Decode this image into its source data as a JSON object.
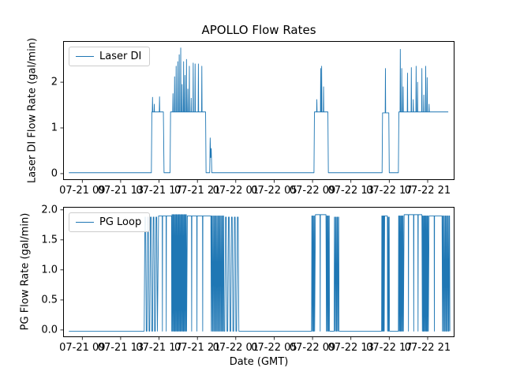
{
  "figure": {
    "title": "APOLLO Flow Rates",
    "xlabel": "Date (GMT)"
  },
  "chart_data": [
    {
      "type": "line",
      "title": "APOLLO Flow Rates",
      "xlabel": "",
      "ylabel": "Laser DI Flow Rate (gal/min)",
      "legend_label": "Laser DI",
      "legend_position": "upper left",
      "line_color": "#1f77b4",
      "grid": false,
      "xlim": [
        0,
        40.8
      ],
      "ylim": [
        -0.14,
        2.9
      ],
      "x_unit": "hours since 07-21 07:00 GMT",
      "xtick_values": [
        2,
        6,
        10,
        14,
        18,
        22,
        26,
        30,
        34,
        38
      ],
      "xtick_labels": [
        "07-21 09",
        "07-21 13",
        "07-21 17",
        "07-21 21",
        "07-22 01",
        "07-22 05",
        "07-22 09",
        "07-22 13",
        "07-22 17",
        "07-22 21"
      ],
      "ytick_values": [
        0,
        1,
        2
      ],
      "ytick_labels": [
        "0",
        "1",
        "2"
      ],
      "series": [
        {
          "name": "Laser DI",
          "segments": [
            {
              "kind": "flat",
              "t": [
                0.6,
                9.2
              ],
              "y": 0.02
            },
            {
              "kind": "plateau_spikes",
              "t": [
                9.25,
                10.45
              ],
              "y": 1.35,
              "spikes": [
                [
                  9.32,
                  1.67
                ],
                [
                  9.5,
                  1.52
                ],
                [
                  10.05,
                  1.68
                ]
              ]
            },
            {
              "kind": "flat",
              "t": [
                10.52,
                11.15
              ],
              "y": 0.02
            },
            {
              "kind": "plateau_spikes",
              "t": [
                11.2,
                14.85
              ],
              "y": 1.35,
              "spikes": [
                [
                  11.45,
                  1.75
                ],
                [
                  11.62,
                  2.12
                ],
                [
                  11.78,
                  2.35
                ],
                [
                  11.95,
                  2.45
                ],
                [
                  12.1,
                  2.6
                ],
                [
                  12.26,
                  2.75
                ],
                [
                  12.4,
                  1.95
                ],
                [
                  12.56,
                  2.45
                ],
                [
                  12.7,
                  2.15
                ],
                [
                  12.86,
                  2.5
                ],
                [
                  13.0,
                  1.85
                ],
                [
                  13.16,
                  2.35
                ],
                [
                  13.35,
                  1.65
                ],
                [
                  13.56,
                  2.42
                ],
                [
                  13.76,
                  2.4
                ],
                [
                  14.1,
                  2.4
                ],
                [
                  14.46,
                  2.35
                ]
              ]
            },
            {
              "kind": "points",
              "pts": [
                [
                  14.9,
                  0.02
                ],
                [
                  15.28,
                  0.02
                ],
                [
                  15.33,
                  0.78
                ],
                [
                  15.38,
                  0.35
                ],
                [
                  15.44,
                  0.55
                ],
                [
                  15.5,
                  0.02
                ]
              ]
            },
            {
              "kind": "flat",
              "t": [
                15.55,
                26.15
              ],
              "y": 0.02
            },
            {
              "kind": "plateau_spikes",
              "t": [
                26.2,
                27.6
              ],
              "y": 1.35,
              "spikes": [
                [
                  26.45,
                  1.62
                ],
                [
                  26.85,
                  2.3
                ],
                [
                  26.95,
                  2.35
                ],
                [
                  27.15,
                  1.9
                ]
              ]
            },
            {
              "kind": "flat",
              "t": [
                27.65,
                33.25
              ],
              "y": 0.02
            },
            {
              "kind": "plateau_spikes",
              "t": [
                33.3,
                33.95
              ],
              "y": 1.33,
              "spikes": [
                [
                  33.6,
                  2.3
                ]
              ]
            },
            {
              "kind": "flat",
              "t": [
                34.0,
                34.95
              ],
              "y": 0.02
            },
            {
              "kind": "plateau_spikes",
              "t": [
                35.0,
                40.15
              ],
              "y": 1.35,
              "spikes": [
                [
                  35.15,
                  2.72
                ],
                [
                  35.3,
                  2.3
                ],
                [
                  35.45,
                  1.9
                ],
                [
                  35.9,
                  2.2
                ],
                [
                  36.3,
                  2.32
                ],
                [
                  36.5,
                  1.62
                ],
                [
                  36.8,
                  2.35
                ],
                [
                  36.95,
                  2.0
                ],
                [
                  37.4,
                  2.3
                ],
                [
                  37.6,
                  1.72
                ],
                [
                  37.8,
                  2.35
                ],
                [
                  37.95,
                  2.1
                ],
                [
                  38.15,
                  1.52
                ]
              ]
            }
          ]
        }
      ]
    },
    {
      "type": "line",
      "title": "",
      "xlabel": "Date (GMT)",
      "ylabel": "PG Flow Rate (gal/min)",
      "legend_label": "PG Loop",
      "legend_position": "upper left",
      "line_color": "#1f77b4",
      "grid": false,
      "xlim": [
        0,
        40.8
      ],
      "ylim": [
        -0.12,
        2.05
      ],
      "x_unit": "hours since 07-21 07:00 GMT",
      "xtick_values": [
        2,
        6,
        10,
        14,
        18,
        22,
        26,
        30,
        34,
        38
      ],
      "xtick_labels": [
        "07-21 09",
        "07-21 13",
        "07-21 17",
        "07-21 21",
        "07-22 01",
        "07-22 05",
        "07-22 09",
        "07-22 13",
        "07-22 17",
        "07-22 21"
      ],
      "ytick_values": [
        0,
        0.5,
        1,
        1.5,
        2
      ],
      "ytick_labels": [
        "0.0",
        "0.5",
        "1.0",
        "1.5",
        "2.0"
      ],
      "series": [
        {
          "name": "PG Loop",
          "segments": [
            {
              "kind": "flat",
              "t": [
                0.6,
                8.4
              ],
              "y": -0.02
            },
            {
              "kind": "stripes",
              "t": [
                8.45,
                9.9
              ],
              "hi": 1.88,
              "lo": -0.02,
              "n": 5
            },
            {
              "kind": "plateau_dips",
              "t": [
                9.95,
                11.3
              ],
              "y": 1.9,
              "dips": [
                10.35,
                10.75
              ]
            },
            {
              "kind": "stripes",
              "t": [
                11.32,
                12.9
              ],
              "hi": 1.92,
              "lo": -0.02,
              "n": 14
            },
            {
              "kind": "plateau_dips",
              "t": [
                12.95,
                15.4
              ],
              "y": 1.9,
              "dips": [
                13.4,
                13.95,
                14.55
              ]
            },
            {
              "kind": "stripes",
              "t": [
                15.45,
                16.8
              ],
              "hi": 1.9,
              "lo": -0.02,
              "n": 10
            },
            {
              "kind": "stripes",
              "t": [
                16.85,
                18.4
              ],
              "hi": 1.88,
              "lo": -0.02,
              "n": 5
            },
            {
              "kind": "flat",
              "t": [
                18.5,
                25.85
              ],
              "y": -0.02
            },
            {
              "kind": "stripes",
              "t": [
                25.9,
                26.25
              ],
              "hi": 1.9,
              "lo": -0.02,
              "n": 3
            },
            {
              "kind": "plateau_dips",
              "t": [
                26.3,
                27.4
              ],
              "y": 1.92,
              "dips": [
                26.8
              ]
            },
            {
              "kind": "stripes",
              "t": [
                27.45,
                27.8
              ],
              "hi": 1.9,
              "lo": -0.02,
              "n": 3
            },
            {
              "kind": "flat",
              "t": [
                27.85,
                28.2
              ],
              "y": -0.02
            },
            {
              "kind": "stripes",
              "t": [
                28.25,
                28.8
              ],
              "hi": 1.88,
              "lo": -0.02,
              "n": 4
            },
            {
              "kind": "flat",
              "t": [
                28.85,
                33.15
              ],
              "y": -0.02
            },
            {
              "kind": "stripes",
              "t": [
                33.2,
                33.5
              ],
              "hi": 1.9,
              "lo": -0.02,
              "n": 3
            },
            {
              "kind": "plateau_dips",
              "t": [
                33.52,
                33.8
              ],
              "y": 1.9,
              "dips": []
            },
            {
              "kind": "stripes",
              "t": [
                33.82,
                34.05
              ],
              "hi": 1.88,
              "lo": -0.02,
              "n": 2
            },
            {
              "kind": "flat",
              "t": [
                34.1,
                34.9
              ],
              "y": -0.02
            },
            {
              "kind": "stripes",
              "t": [
                34.95,
                35.5
              ],
              "hi": 1.9,
              "lo": -0.02,
              "n": 5
            },
            {
              "kind": "plateau_dips",
              "t": [
                35.55,
                37.4
              ],
              "y": 1.92,
              "dips": [
                36.0,
                36.55,
                37.0
              ]
            },
            {
              "kind": "stripes",
              "t": [
                37.45,
                38.1
              ],
              "hi": 1.9,
              "lo": -0.02,
              "n": 6
            },
            {
              "kind": "plateau_dips",
              "t": [
                38.15,
                39.5
              ],
              "y": 1.9,
              "dips": [
                38.7
              ]
            },
            {
              "kind": "stripes",
              "t": [
                39.55,
                40.35
              ],
              "hi": 1.9,
              "lo": -0.02,
              "n": 6
            }
          ]
        }
      ]
    }
  ]
}
